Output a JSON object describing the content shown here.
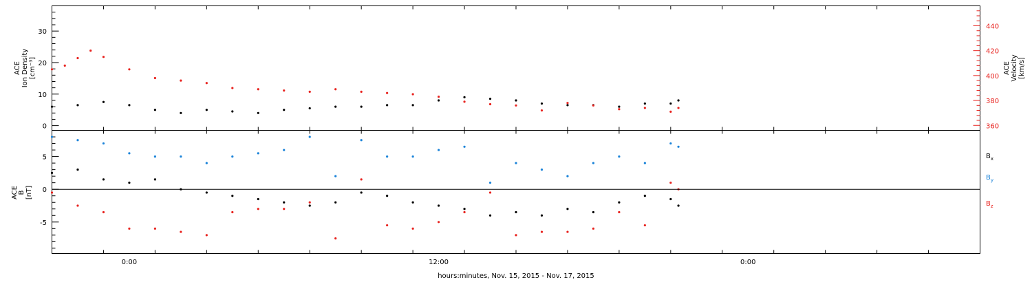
{
  "colors": {
    "black": "#000000",
    "red": "#e8231f",
    "blue": "#1a83d9"
  },
  "footer": {
    "xlabel": "hours:minutes, Nov. 15, 2015 - Nov. 17, 2015"
  },
  "chart_data": [
    {
      "type": "scatter",
      "panel": "top",
      "x_unit": "hours since Nov. 15 2015 21:00",
      "xlim": [
        0,
        36
      ],
      "x_tick_labels": [
        "0:00",
        "12:00",
        "0:00"
      ],
      "x_tick_label_hours": [
        3,
        15,
        27
      ],
      "left_axis": {
        "label_line1": "ACE",
        "label_line2": "Ion Density",
        "label_line3": "[cm⁻³]",
        "ylim": [
          -1.5,
          38
        ],
        "ticks": [
          0,
          10,
          20,
          30
        ]
      },
      "right_axis": {
        "label_line1": "ACE",
        "label_line2": "Velocity",
        "label_line3": "[km/s]",
        "ylim": [
          356,
          456
        ],
        "ticks": [
          360,
          380,
          400,
          420,
          440
        ]
      },
      "series": [
        {
          "name": "",
          "axis": "left",
          "color": "#000000",
          "x": [
            0,
            1,
            2,
            3,
            4,
            5,
            6,
            7,
            8,
            9,
            10,
            11,
            12,
            13,
            14,
            15,
            16,
            17,
            18,
            19,
            20,
            21,
            22,
            23,
            24,
            24.3
          ],
          "y": [
            6,
            6.5,
            7.5,
            6.5,
            5,
            4,
            5,
            4.5,
            4,
            5,
            5.5,
            6,
            6,
            6.5,
            6.5,
            8,
            9,
            8.5,
            8,
            7,
            6.5,
            6.5,
            6,
            7,
            7,
            8
          ]
        },
        {
          "name": "",
          "axis": "right",
          "color": "#e8231f",
          "x": [
            0,
            0.5,
            1,
            1.5,
            2,
            3,
            4,
            5,
            6,
            7,
            8,
            9,
            10,
            11,
            12,
            13,
            14,
            15,
            16,
            17,
            18,
            19,
            20,
            21,
            22,
            23,
            24,
            24.3
          ],
          "y": [
            405,
            408,
            414,
            420,
            415,
            405,
            398,
            396,
            394,
            390,
            389,
            388,
            387,
            389,
            387,
            386,
            385,
            383,
            379,
            377,
            376,
            372,
            378,
            376,
            373,
            374,
            371,
            374
          ]
        }
      ]
    },
    {
      "type": "scatter",
      "panel": "bottom",
      "x_unit": "hours since Nov. 15 2015 21:00",
      "xlim": [
        0,
        36
      ],
      "y_axis": {
        "label_line1": "ACE",
        "label_line2": "B",
        "label_line3": "[nT]",
        "ylim": [
          -9.8,
          9
        ],
        "ticks": [
          -5,
          0,
          5
        ]
      },
      "zero_line": 0,
      "series": [
        {
          "name": "Bx",
          "color": "#000000",
          "x": [
            0,
            1,
            2,
            3,
            4,
            5,
            6,
            7,
            8,
            9,
            10,
            11,
            12,
            13,
            14,
            15,
            16,
            17,
            18,
            19,
            20,
            21,
            22,
            23,
            24,
            24.3
          ],
          "y": [
            2.5,
            3,
            1.5,
            1,
            1.5,
            0,
            -0.5,
            -1,
            -1.5,
            -2,
            -2.5,
            -2,
            -0.5,
            -1,
            -2,
            -2.5,
            -3,
            -4,
            -3.5,
            -4,
            -3,
            -3.5,
            -2,
            -1,
            -1.5,
            -2.5
          ]
        },
        {
          "name": "By",
          "color": "#1a83d9",
          "x": [
            0,
            1,
            2,
            3,
            4,
            5,
            6,
            7,
            8,
            9,
            10,
            11,
            12,
            13,
            14,
            15,
            16,
            17,
            18,
            19,
            20,
            21,
            22,
            23,
            24,
            24.3
          ],
          "y": [
            8,
            7.5,
            7,
            5.5,
            5,
            5,
            4,
            5,
            5.5,
            6,
            8,
            2,
            7.5,
            5,
            5,
            6,
            6.5,
            1,
            4,
            3,
            2,
            4,
            5,
            4,
            7,
            6.5
          ]
        },
        {
          "name": "Bz",
          "color": "#e8231f",
          "x": [
            0,
            1,
            2,
            3,
            4,
            5,
            6,
            7,
            8,
            9,
            10,
            11,
            12,
            13,
            14,
            15,
            16,
            17,
            18,
            19,
            20,
            21,
            22,
            23,
            24,
            24.3
          ],
          "y": [
            -0.5,
            -2.5,
            -3.5,
            -6,
            -6,
            -6.5,
            -7,
            -3.5,
            -3,
            -3,
            -2,
            -7.5,
            1.5,
            -5.5,
            -6,
            -5,
            -3.5,
            -0.5,
            -7,
            -6.5,
            -6.5,
            -6,
            -3.5,
            -5.5,
            1,
            0
          ]
        }
      ],
      "legend": [
        {
          "label": "B",
          "sub": "x",
          "color": "#000000"
        },
        {
          "label": "B",
          "sub": "y",
          "color": "#1a83d9"
        },
        {
          "label": "B",
          "sub": "z",
          "color": "#e8231f"
        }
      ]
    }
  ]
}
